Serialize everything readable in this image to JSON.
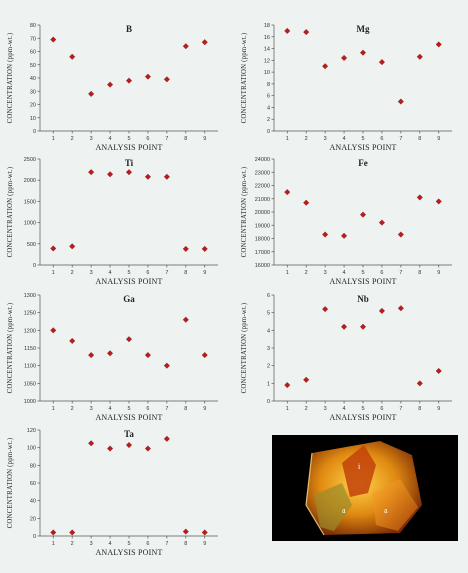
{
  "x_label": "ANALYSIS POINT",
  "y_label": "CONCENTRATION (ppm-wt.)",
  "marker_color": "#b81d1d",
  "chart_data": [
    {
      "type": "scatter",
      "title": "B",
      "x": [
        1,
        2,
        3,
        4,
        5,
        6,
        7,
        8,
        9
      ],
      "y": [
        69,
        56,
        28,
        35,
        38,
        41,
        39,
        64,
        67
      ],
      "ylim": [
        0,
        80
      ],
      "yticks": [
        "0",
        "10",
        "20",
        "30",
        "40",
        "50",
        "60",
        "70",
        "80"
      ],
      "xlabel": "ANALYSIS POINT",
      "ylabel": "CONCENTRATION (ppm-wt.)"
    },
    {
      "type": "scatter",
      "title": "Mg",
      "x": [
        1,
        2,
        3,
        4,
        5,
        6,
        7,
        8,
        9
      ],
      "y": [
        17.0,
        16.8,
        11.0,
        12.4,
        13.3,
        11.7,
        5.0,
        12.6,
        14.7
      ],
      "ylim": [
        0,
        18
      ],
      "yticks": [
        "0",
        "2",
        "4",
        "6",
        "8",
        "10",
        "12",
        "14",
        "16",
        "18"
      ],
      "xlabel": "ANALYSIS POINT",
      "ylabel": "CONCENTRATION (ppm-wt.)"
    },
    {
      "type": "scatter",
      "title": "Ti",
      "x": [
        1,
        2,
        3,
        4,
        5,
        6,
        7,
        8,
        9
      ],
      "y": [
        390,
        440,
        2190,
        2140,
        2190,
        2080,
        2080,
        380,
        380
      ],
      "ylim": [
        0,
        2500
      ],
      "yticks": [
        "0",
        "500",
        "1000",
        "1500",
        "2000",
        "2500"
      ],
      "xlabel": "ANALYSIS POINT",
      "ylabel": "CONCENTRATION (ppm-wt.)"
    },
    {
      "type": "scatter",
      "title": "Fe",
      "x": [
        1,
        2,
        3,
        4,
        5,
        6,
        7,
        8,
        9
      ],
      "y": [
        21500,
        20700,
        18300,
        18200,
        19800,
        19200,
        18300,
        21100,
        20800
      ],
      "ylim": [
        16000,
        24000
      ],
      "yticks": [
        "16000",
        "17000",
        "18000",
        "19000",
        "20000",
        "21000",
        "22000",
        "23000",
        "24000"
      ],
      "xlabel": "ANALYSIS POINT",
      "ylabel": "CONCENTRATION (ppm-wt.)"
    },
    {
      "type": "scatter",
      "title": "Ga",
      "x": [
        1,
        2,
        3,
        4,
        5,
        6,
        7,
        8,
        9
      ],
      "y": [
        1200,
        1170,
        1130,
        1135,
        1175,
        1130,
        1100,
        1230,
        1130
      ],
      "ylim": [
        1000,
        1300
      ],
      "yticks": [
        "1000",
        "1050",
        "1100",
        "1150",
        "1200",
        "1250",
        "1300"
      ],
      "xlabel": "ANALYSIS POINT",
      "ylabel": "CONCENTRATION (ppm-wt.)"
    },
    {
      "type": "scatter",
      "title": "Nb",
      "x": [
        1,
        2,
        3,
        4,
        5,
        6,
        7,
        8,
        9
      ],
      "y": [
        0.9,
        1.2,
        5.2,
        4.2,
        4.2,
        5.1,
        5.25,
        1.0,
        1.7
      ],
      "ylim": [
        0,
        6
      ],
      "yticks": [
        "0",
        "1",
        "2",
        "3",
        "4",
        "5",
        "6"
      ],
      "xlabel": "ANALYSIS POINT",
      "ylabel": "CONCENTRATION (ppm-wt.)"
    },
    {
      "type": "scatter",
      "title": "Ta",
      "x": [
        1,
        2,
        3,
        4,
        5,
        6,
        7,
        8,
        9
      ],
      "y": [
        4,
        4,
        105,
        99,
        103,
        99,
        110,
        5,
        4
      ],
      "ylim": [
        0,
        120
      ],
      "yticks": [
        "0",
        "20",
        "40",
        "60",
        "80",
        "100",
        "120"
      ],
      "xlabel": "ANALYSIS POINT",
      "ylabel": "CONCENTRATION (ppm-wt.)"
    }
  ],
  "photo": {
    "labels": [
      "i",
      "a",
      "a"
    ]
  }
}
